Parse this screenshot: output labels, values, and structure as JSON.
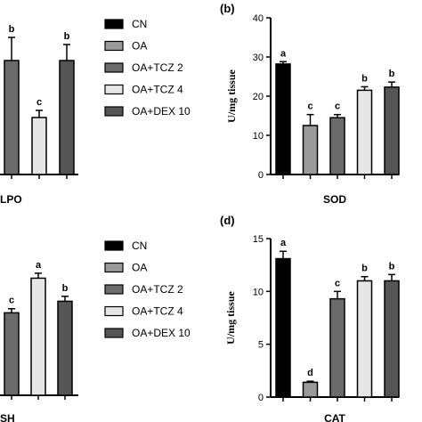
{
  "colors": {
    "CN": "#000000",
    "OA": "#9a9a9a",
    "OA+TCZ 2": "#6b6b6b",
    "OA+TCZ 4": "#e6e6e6",
    "OA+DEX 10": "#555555"
  },
  "legend_top": [
    "CN",
    "OA",
    "OA+TCZ 2",
    "OA+TCZ 4",
    "OA+DEX 10"
  ],
  "legend_bottom": [
    "CN",
    "OA",
    "OA+TCZ 2",
    "OA+TCZ 4",
    "OA+DEX 10"
  ],
  "chart_data": [
    {
      "panel": "partial-left-top",
      "type": "bar",
      "xlabel": "LPO",
      "categories": [
        "OA+TCZ 2",
        "OA+TCZ 4",
        "OA+DEX 10"
      ],
      "values": [
        3.2,
        1.6,
        3.2
      ],
      "errors": [
        0.65,
        0.2,
        0.45
      ],
      "letters": [
        "b",
        "c",
        "b"
      ]
    },
    {
      "panel": "(b)",
      "type": "bar",
      "ylabel": "U/mg tissue",
      "xlabel": "SOD",
      "ylim": [
        0,
        40
      ],
      "yticks": [
        "0",
        "10",
        "20",
        "30",
        "40"
      ],
      "categories": [
        "CN",
        "OA",
        "OA+TCZ 2",
        "OA+TCZ 4",
        "OA+DEX 10"
      ],
      "values": [
        28.2,
        12.5,
        14.5,
        21.5,
        22.3
      ],
      "errors": [
        0.6,
        2.8,
        0.8,
        0.9,
        1.3
      ],
      "letters": [
        "a",
        "c",
        "c",
        "b",
        "b"
      ]
    },
    {
      "panel": "partial-left-bottom",
      "type": "bar",
      "xlabel": "SH",
      "categories": [
        "OA+TCZ 2",
        "OA+TCZ 4",
        "OA+DEX 10"
      ],
      "values": [
        5.0,
        7.1,
        5.7
      ],
      "errors": [
        0.25,
        0.3,
        0.3
      ],
      "letters": [
        "c",
        "a",
        "b"
      ]
    },
    {
      "panel": "(d)",
      "type": "bar",
      "ylabel": "U/mg tissue",
      "xlabel": "CAT",
      "ylim": [
        0,
        15
      ],
      "yticks": [
        "0",
        "5",
        "10",
        "15"
      ],
      "categories": [
        "CN",
        "OA",
        "OA+TCZ 2",
        "OA+TCZ 4",
        "OA+DEX 10"
      ],
      "values": [
        13.1,
        1.4,
        9.3,
        11.0,
        11.0
      ],
      "errors": [
        0.7,
        0.1,
        0.7,
        0.4,
        0.6
      ],
      "letters": [
        "a",
        "d",
        "c",
        "b",
        "b"
      ]
    }
  ]
}
